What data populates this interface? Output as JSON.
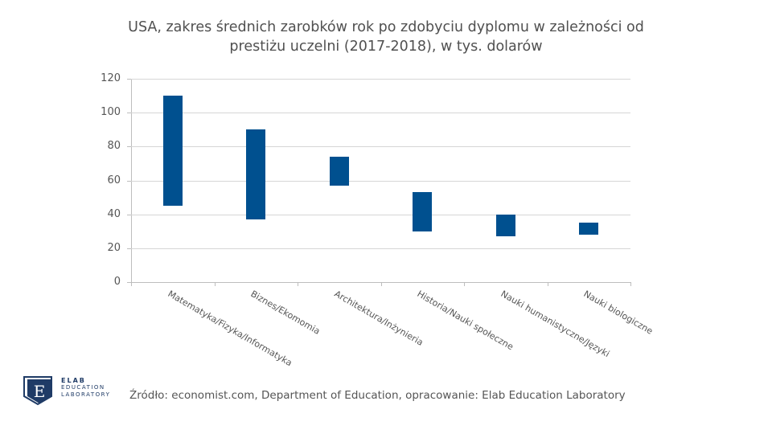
{
  "chart_data": {
    "type": "bar",
    "subtype": "floating-range",
    "title": "USA, zakres średnich zarobków rok po zdobyciu dyplomu w zależności od prestiżu uczelni (2017-2018), w tys. dolarów",
    "title_lines": [
      "USA, zakres średnich zarobków rok po zdobyciu dyplomu w zależności od",
      "prestiżu uczelni (2017-2018), w tys. dolarów"
    ],
    "xlabel": "",
    "ylabel": "",
    "ylim": [
      0,
      120
    ],
    "yticks": [
      "0",
      "20",
      "40",
      "60",
      "80",
      "100",
      "120"
    ],
    "grid": true,
    "legend": "none",
    "categories": [
      "Matematyka/Fizyka/Informatyka",
      "Biznes/Ekomomia",
      "Architektura/Inżynieria",
      "Historia/Nauki społeczne",
      "Nauki humanistyczne/Języki",
      "Nauki biologiczne"
    ],
    "series": [
      {
        "name": "min",
        "values": [
          45,
          37,
          57,
          30,
          27,
          28
        ]
      },
      {
        "name": "max",
        "values": [
          110,
          90,
          74,
          53,
          40,
          35
        ]
      }
    ],
    "bar_color": "#00508f"
  },
  "footer": {
    "source": "Źródło: economist.com, Department of Education, opracowanie: Elab Education Laboratory"
  },
  "logo": {
    "letter": "E",
    "line1": "ELAB",
    "line2": "EDUCATION",
    "line3": "LABORATORY"
  }
}
